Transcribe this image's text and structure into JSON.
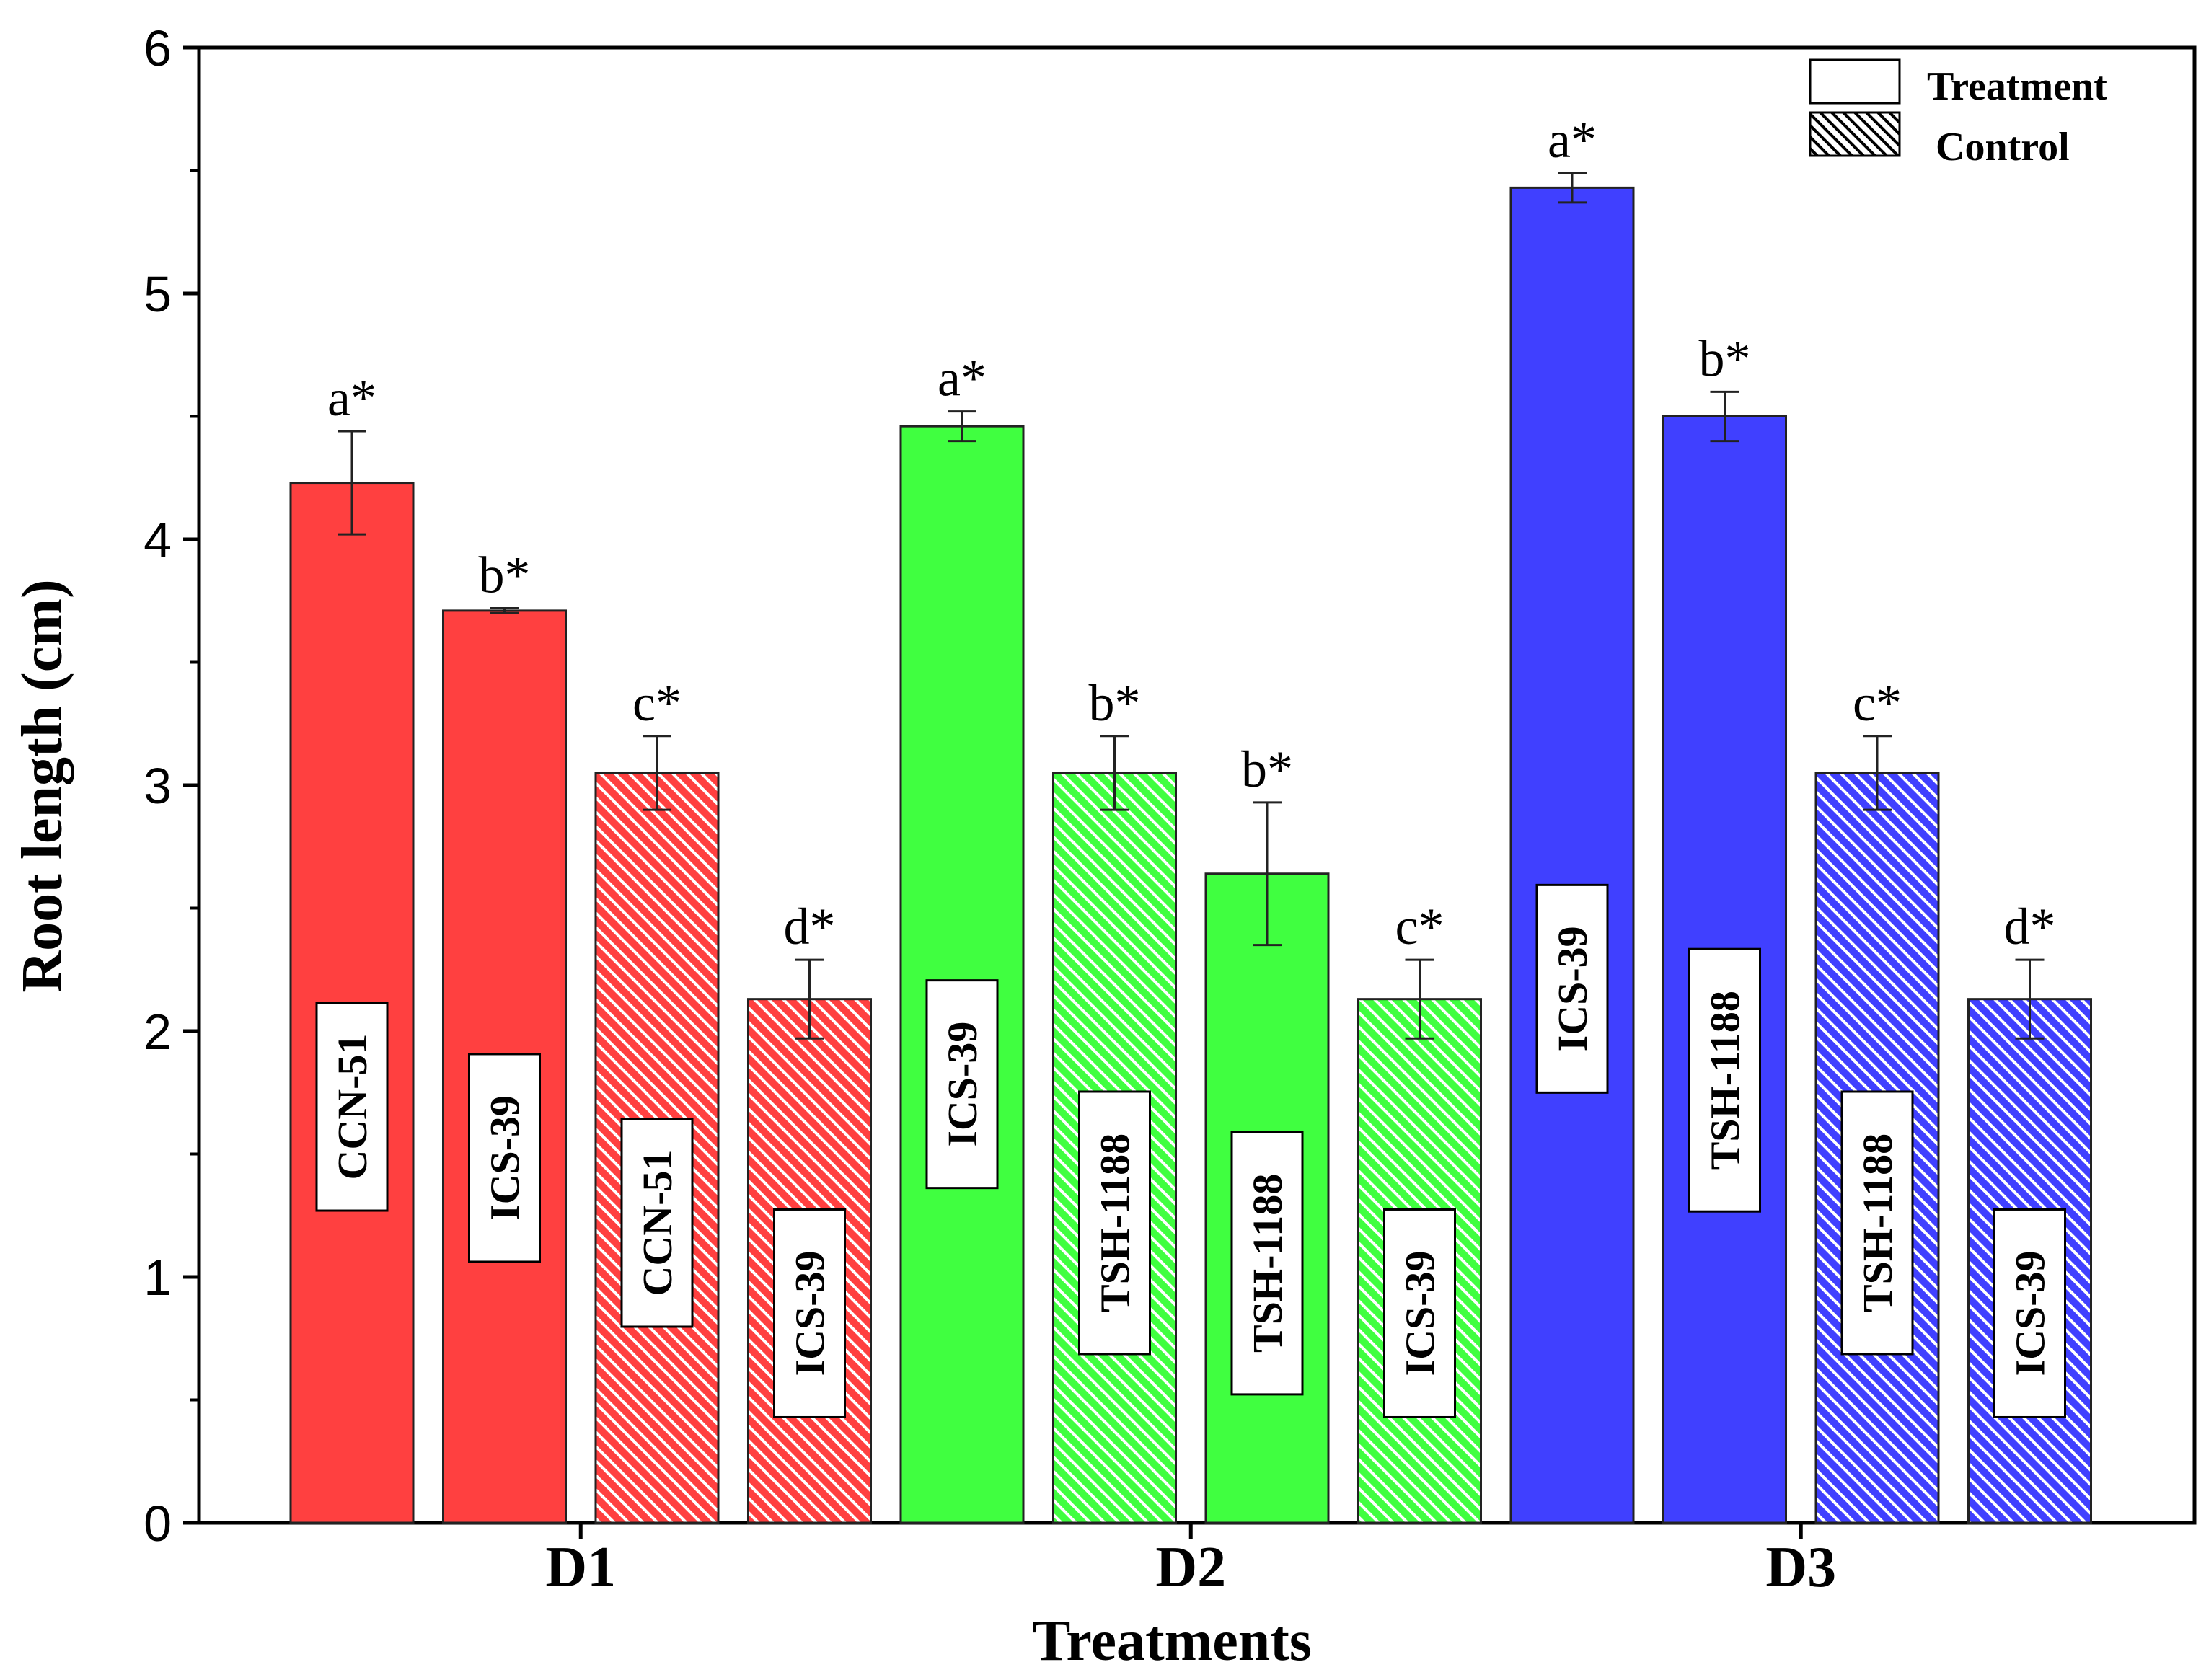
{
  "chart_data": {
    "type": "bar",
    "xlabel": "Treatments",
    "ylabel": "Root length (cm)",
    "ylim": [
      0,
      6
    ],
    "yticks": [
      0,
      1,
      2,
      3,
      4,
      5,
      6
    ],
    "yticks_minor": [
      0.5,
      1.5,
      2.5,
      3.5,
      4.5,
      5.5
    ],
    "groups": [
      "D1",
      "D2",
      "D3"
    ],
    "legend": {
      "position": "top-right",
      "entries": [
        {
          "label": "Treatment",
          "pattern": "solid"
        },
        {
          "label": "Control",
          "pattern": "hatched"
        }
      ]
    },
    "colors": {
      "D1": "#ff4040",
      "D2": "#40ff40",
      "D3": "#4040ff",
      "axis": "#000000",
      "label_box": "#ffffff"
    },
    "bars": [
      {
        "group": "D1",
        "label": "CCN-51",
        "pattern": "solid",
        "value": 4.23,
        "error": 0.21,
        "significance": "a*"
      },
      {
        "group": "D1",
        "label": "ICS-39",
        "pattern": "solid",
        "value": 3.71,
        "error": 0.01,
        "significance": "b*"
      },
      {
        "group": "D1",
        "label": "CCN-51",
        "pattern": "hatched",
        "value": 3.05,
        "error": 0.15,
        "significance": "c*"
      },
      {
        "group": "D1",
        "label": "ICS-39",
        "pattern": "hatched",
        "value": 2.13,
        "error": 0.16,
        "significance": "d*"
      },
      {
        "group": "D2",
        "label": "ICS-39",
        "pattern": "solid",
        "value": 4.46,
        "error": 0.06,
        "significance": "a*"
      },
      {
        "group": "D2",
        "label": "TSH-1188",
        "pattern": "hatched",
        "value": 3.05,
        "error": 0.15,
        "significance": "b*"
      },
      {
        "group": "D2",
        "label": "TSH-1188",
        "pattern": "solid",
        "value": 2.64,
        "error": 0.29,
        "significance": "b*"
      },
      {
        "group": "D2",
        "label": "ICS-39",
        "pattern": "hatched",
        "value": 2.13,
        "error": 0.16,
        "significance": "c*"
      },
      {
        "group": "D3",
        "label": "ICS-39",
        "pattern": "solid",
        "value": 5.43,
        "error": 0.06,
        "significance": "a*"
      },
      {
        "group": "D3",
        "label": "TSH-1188",
        "pattern": "solid",
        "value": 4.5,
        "error": 0.1,
        "significance": "b*"
      },
      {
        "group": "D3",
        "label": "TSH-1188",
        "pattern": "hatched",
        "value": 3.05,
        "error": 0.15,
        "significance": "c*"
      },
      {
        "group": "D3",
        "label": "ICS-39",
        "pattern": "hatched",
        "value": 2.13,
        "error": 0.16,
        "significance": "d*"
      }
    ]
  }
}
